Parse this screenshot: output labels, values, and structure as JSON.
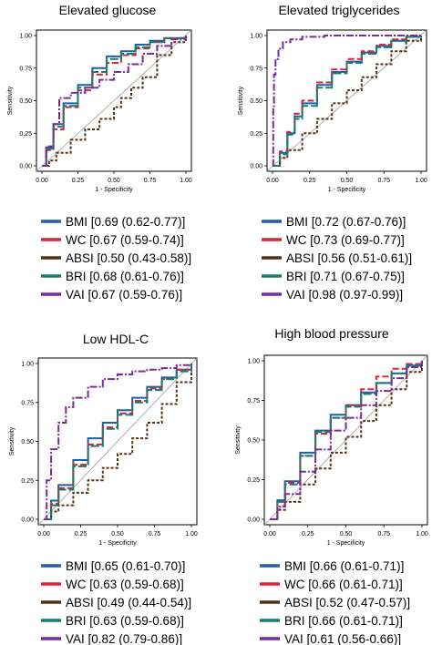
{
  "colors": {
    "BMI": "#1f5fa6",
    "WC": "#d9263a",
    "ABSI": "#5a2e12",
    "BRI": "#12806e",
    "VAI": "#7a2a9a",
    "reference": "#9a9a9a",
    "frame": "#000000"
  },
  "chart_data": [
    {
      "type": "line",
      "title": "Elevated glucose",
      "xlabel": "1 - Specificity",
      "ylabel": "Sensitivity",
      "xlim": [
        0,
        1
      ],
      "ylim": [
        0,
        1
      ],
      "xticks": [
        "0.00",
        "0.25",
        "0.50",
        "0.75",
        "1.00"
      ],
      "yticks": [
        "0.00",
        "0.25",
        "0.50",
        "0.75",
        "1.00"
      ],
      "reference_line": true,
      "legend_position": "below",
      "series": [
        {
          "key": "BMI",
          "name": "BMI [0.69 (0.62-0.77)]",
          "x": [
            0,
            0.03,
            0.08,
            0.15,
            0.25,
            0.35,
            0.45,
            0.55,
            0.65,
            0.75,
            0.85,
            1.0
          ],
          "y": [
            0,
            0.14,
            0.32,
            0.48,
            0.62,
            0.75,
            0.84,
            0.88,
            0.93,
            0.96,
            0.98,
            1.0
          ]
        },
        {
          "key": "WC",
          "name": "WC [0.67 (0.59-0.74)]",
          "x": [
            0,
            0.03,
            0.08,
            0.15,
            0.25,
            0.35,
            0.45,
            0.55,
            0.65,
            0.75,
            0.85,
            1.0
          ],
          "y": [
            0,
            0.12,
            0.28,
            0.45,
            0.58,
            0.7,
            0.79,
            0.85,
            0.9,
            0.95,
            0.98,
            1.0
          ]
        },
        {
          "key": "ABSI",
          "name": "ABSI [0.50 (0.43-0.58)]",
          "x": [
            0,
            0.05,
            0.1,
            0.2,
            0.3,
            0.4,
            0.5,
            0.55,
            0.62,
            0.7,
            0.8,
            0.9,
            1.0
          ],
          "y": [
            0,
            0.04,
            0.1,
            0.2,
            0.28,
            0.36,
            0.45,
            0.52,
            0.6,
            0.68,
            0.85,
            0.95,
            1.0
          ]
        },
        {
          "key": "BRI",
          "name": "BRI [0.68 (0.61-0.76)]",
          "x": [
            0,
            0.03,
            0.08,
            0.15,
            0.25,
            0.35,
            0.45,
            0.55,
            0.65,
            0.75,
            0.85,
            1.0
          ],
          "y": [
            0,
            0.13,
            0.3,
            0.46,
            0.6,
            0.72,
            0.82,
            0.86,
            0.91,
            0.95,
            0.98,
            1.0
          ]
        },
        {
          "key": "VAI",
          "name": "VAI [0.67 (0.59-0.76)]",
          "x": [
            0,
            0.03,
            0.08,
            0.12,
            0.2,
            0.3,
            0.4,
            0.5,
            0.6,
            0.7,
            0.8,
            0.9,
            1.0
          ],
          "y": [
            0,
            0.15,
            0.32,
            0.52,
            0.56,
            0.6,
            0.66,
            0.72,
            0.78,
            0.86,
            0.92,
            0.97,
            1.0
          ]
        }
      ]
    },
    {
      "type": "line",
      "title": "Elevated triglycerides",
      "xlabel": "1 - Specificity",
      "ylabel": "Sensitivity",
      "xlim": [
        0,
        1
      ],
      "ylim": [
        0,
        1
      ],
      "xticks": [
        "0.00",
        "0.25",
        "0.50",
        "0.75",
        "1.00"
      ],
      "yticks": [
        "0.00",
        "0.25",
        "0.50",
        "0.75",
        "1.00"
      ],
      "reference_line": true,
      "legend_position": "below",
      "series": [
        {
          "key": "BMI",
          "name": "BMI [0.72 (0.67-0.76)]",
          "x": [
            0,
            0.05,
            0.1,
            0.15,
            0.2,
            0.3,
            0.4,
            0.5,
            0.6,
            0.7,
            0.8,
            0.9,
            1.0
          ],
          "y": [
            0,
            0.1,
            0.25,
            0.38,
            0.48,
            0.62,
            0.72,
            0.8,
            0.87,
            0.92,
            0.96,
            0.99,
            1.0
          ]
        },
        {
          "key": "WC",
          "name": "WC [0.73 (0.69-0.77)]",
          "x": [
            0,
            0.05,
            0.1,
            0.15,
            0.2,
            0.3,
            0.4,
            0.5,
            0.6,
            0.7,
            0.8,
            0.9,
            1.0
          ],
          "y": [
            0,
            0.11,
            0.26,
            0.4,
            0.5,
            0.64,
            0.74,
            0.82,
            0.88,
            0.93,
            0.97,
            0.99,
            1.0
          ]
        },
        {
          "key": "ABSI",
          "name": "ABSI [0.56 (0.51-0.61)]",
          "x": [
            0,
            0.05,
            0.1,
            0.2,
            0.3,
            0.4,
            0.5,
            0.6,
            0.7,
            0.8,
            0.9,
            1.0
          ],
          "y": [
            0,
            0.06,
            0.12,
            0.25,
            0.36,
            0.48,
            0.58,
            0.68,
            0.78,
            0.88,
            0.96,
            1.0
          ]
        },
        {
          "key": "BRI",
          "name": "BRI [0.71 (0.67-0.75)]",
          "x": [
            0,
            0.05,
            0.1,
            0.15,
            0.2,
            0.3,
            0.4,
            0.5,
            0.6,
            0.7,
            0.8,
            0.9,
            1.0
          ],
          "y": [
            0,
            0.09,
            0.24,
            0.36,
            0.46,
            0.6,
            0.71,
            0.79,
            0.86,
            0.91,
            0.96,
            0.99,
            1.0
          ]
        },
        {
          "key": "VAI",
          "name": "VAI [0.98 (0.97-0.99)]",
          "x": [
            0,
            0.005,
            0.01,
            0.02,
            0.04,
            0.07,
            0.12,
            0.2,
            0.35,
            0.6,
            1.0
          ],
          "y": [
            0,
            0.45,
            0.7,
            0.82,
            0.9,
            0.95,
            0.97,
            0.99,
            1.0,
            1.0,
            1.0
          ]
        }
      ]
    },
    {
      "type": "line",
      "title": "Low HDL-C",
      "xlabel": "1 - Specificity",
      "ylabel": "Sensitivity",
      "xlim": [
        0,
        1
      ],
      "ylim": [
        0,
        1
      ],
      "xticks": [
        "0.00",
        "0.25",
        "0.50",
        "0.75",
        "1.00"
      ],
      "yticks": [
        "0.00",
        "0.25",
        "0.50",
        "0.75",
        "1.00"
      ],
      "reference_line": true,
      "legend_position": "below",
      "series": [
        {
          "key": "BMI",
          "name": "BMI [0.65 (0.61-0.70)]",
          "x": [
            0,
            0.05,
            0.1,
            0.2,
            0.3,
            0.4,
            0.5,
            0.6,
            0.7,
            0.8,
            0.9,
            1.0
          ],
          "y": [
            0,
            0.12,
            0.22,
            0.38,
            0.52,
            0.62,
            0.7,
            0.78,
            0.85,
            0.91,
            0.96,
            1.0
          ]
        },
        {
          "key": "WC",
          "name": "WC [0.63 (0.59-0.68)]",
          "x": [
            0,
            0.05,
            0.1,
            0.2,
            0.3,
            0.4,
            0.5,
            0.6,
            0.7,
            0.8,
            0.9,
            1.0
          ],
          "y": [
            0,
            0.1,
            0.2,
            0.35,
            0.48,
            0.59,
            0.68,
            0.76,
            0.84,
            0.9,
            0.96,
            1.0
          ]
        },
        {
          "key": "ABSI",
          "name": "ABSI [0.49 (0.44-0.54)]",
          "x": [
            0,
            0.05,
            0.1,
            0.2,
            0.3,
            0.4,
            0.5,
            0.6,
            0.7,
            0.8,
            0.9,
            1.0
          ],
          "y": [
            0,
            0.05,
            0.09,
            0.17,
            0.25,
            0.33,
            0.42,
            0.52,
            0.62,
            0.74,
            0.88,
            1.0
          ]
        },
        {
          "key": "BRI",
          "name": "BRI [0.63 (0.59-0.68)]",
          "x": [
            0,
            0.05,
            0.1,
            0.2,
            0.3,
            0.4,
            0.5,
            0.6,
            0.7,
            0.8,
            0.9,
            1.0
          ],
          "y": [
            0,
            0.09,
            0.19,
            0.34,
            0.47,
            0.58,
            0.67,
            0.75,
            0.83,
            0.9,
            0.95,
            1.0
          ]
        },
        {
          "key": "VAI",
          "name": "VAI [0.82 (0.79-0.86)]",
          "x": [
            0,
            0.02,
            0.05,
            0.1,
            0.15,
            0.2,
            0.3,
            0.4,
            0.5,
            0.6,
            0.7,
            0.8,
            0.9,
            1.0
          ],
          "y": [
            0,
            0.25,
            0.45,
            0.62,
            0.72,
            0.78,
            0.85,
            0.9,
            0.93,
            0.95,
            0.96,
            0.97,
            0.99,
            1.0
          ]
        }
      ]
    },
    {
      "type": "line",
      "title": "High blood pressure",
      "xlabel": "1 - Specificity",
      "ylabel": "Sensitivity",
      "xlim": [
        0,
        1
      ],
      "ylim": [
        0,
        1
      ],
      "xticks": [
        "0.00",
        "0.25",
        "0.50",
        "0.75",
        "1.00"
      ],
      "yticks": [
        "0.00",
        "0.25",
        "0.50",
        "0.75",
        "1.00"
      ],
      "reference_line": true,
      "legend_position": "below",
      "series": [
        {
          "key": "BMI",
          "name": "BMI [0.66 (0.61-0.71)]",
          "x": [
            0,
            0.05,
            0.1,
            0.2,
            0.3,
            0.4,
            0.5,
            0.6,
            0.7,
            0.8,
            0.9,
            1.0
          ],
          "y": [
            0,
            0.12,
            0.24,
            0.42,
            0.56,
            0.66,
            0.72,
            0.8,
            0.86,
            0.92,
            0.97,
            1.0
          ]
        },
        {
          "key": "WC",
          "name": "WC [0.66 (0.61-0.71)]",
          "x": [
            0,
            0.05,
            0.1,
            0.2,
            0.3,
            0.4,
            0.5,
            0.6,
            0.7,
            0.8,
            0.9,
            1.0
          ],
          "y": [
            0,
            0.11,
            0.23,
            0.4,
            0.54,
            0.64,
            0.72,
            0.82,
            0.9,
            0.95,
            0.98,
            1.0
          ]
        },
        {
          "key": "ABSI",
          "name": "ABSI [0.52 (0.47-0.57)]",
          "x": [
            0,
            0.05,
            0.1,
            0.2,
            0.3,
            0.4,
            0.5,
            0.6,
            0.7,
            0.8,
            0.9,
            1.0
          ],
          "y": [
            0,
            0.06,
            0.11,
            0.22,
            0.32,
            0.42,
            0.52,
            0.62,
            0.72,
            0.82,
            0.93,
            1.0
          ]
        },
        {
          "key": "BRI",
          "name": "BRI [0.66 (0.61-0.71)]",
          "x": [
            0,
            0.05,
            0.1,
            0.2,
            0.3,
            0.4,
            0.5,
            0.6,
            0.7,
            0.8,
            0.9,
            1.0
          ],
          "y": [
            0,
            0.11,
            0.22,
            0.4,
            0.55,
            0.64,
            0.71,
            0.79,
            0.86,
            0.92,
            0.97,
            1.0
          ]
        },
        {
          "key": "VAI",
          "name": "VAI [0.61 (0.56-0.66)]",
          "x": [
            0,
            0.05,
            0.1,
            0.2,
            0.3,
            0.4,
            0.5,
            0.6,
            0.7,
            0.8,
            0.9,
            1.0
          ],
          "y": [
            0,
            0.08,
            0.16,
            0.3,
            0.44,
            0.56,
            0.64,
            0.72,
            0.81,
            0.89,
            0.96,
            1.0
          ]
        }
      ]
    }
  ]
}
